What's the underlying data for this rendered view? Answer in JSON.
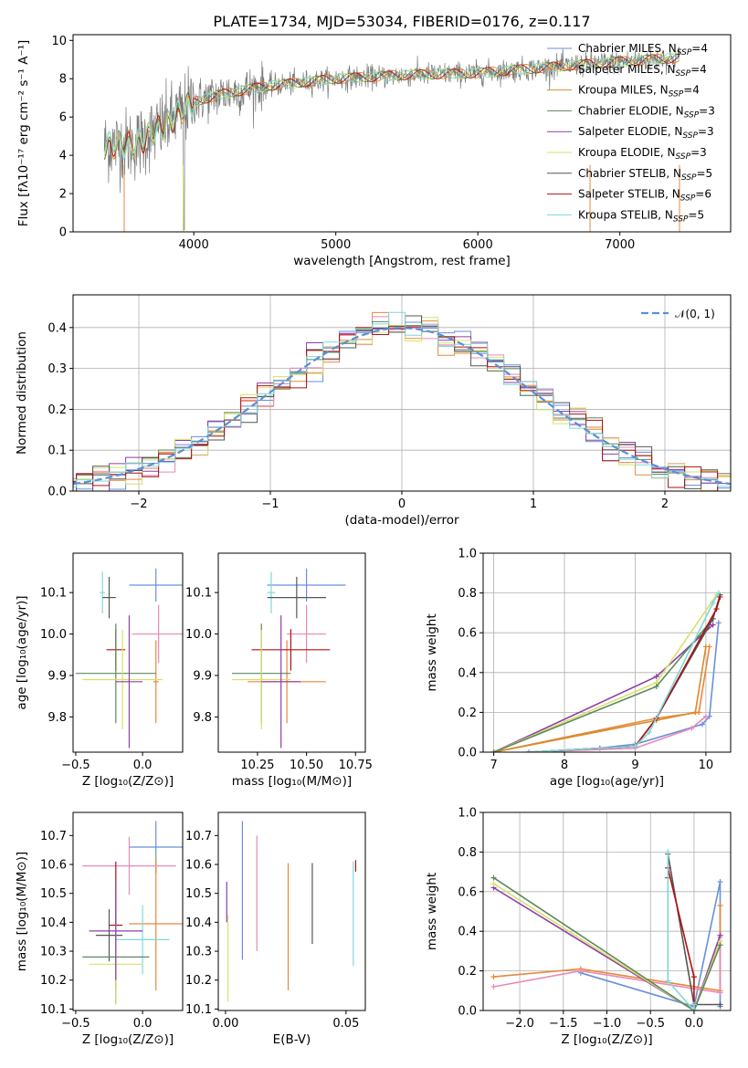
{
  "title": "PLATE=1734, MJD=53034, FIBERID=0176, z=0.117",
  "colors": {
    "chabrier_miles": "#6a8fdb",
    "salpeter_miles": "#e8883a",
    "kroupa_miles": "#d98a2a",
    "chabrier_elodie": "#5b8a5b",
    "salpeter_elodie": "#8e3ea8",
    "kroupa_elodie": "#d8e06a",
    "chabrier_stelib": "#555555",
    "salpeter_stelib": "#b01010",
    "kroupa_stelib": "#7fd8d8",
    "pink": "#e889b8",
    "gaussian": "#5b8fd6",
    "grid": "#b0b0b0",
    "spectrum": "#7a7a7a"
  },
  "chart_data": [
    {
      "id": "spectrum",
      "type": "line",
      "xlabel": "wavelength [Angstrom, rest frame]",
      "ylabel": "Flux [fλ10⁻¹⁷ erg cm⁻² s⁻¹ A⁻¹]",
      "xlim": [
        3150,
        7780
      ],
      "ylim": [
        0,
        10.3
      ],
      "xticks": [
        "4000",
        "5000",
        "6000",
        "7000"
      ],
      "yticks": [
        "0",
        "2",
        "4",
        "6",
        "8",
        "10"
      ],
      "x_range": [
        3370,
        7420
      ],
      "legend_loc": "upper-right",
      "legend": [
        "Chabrier MILES, N_SSP=4",
        "Salpeter MILES, N_SSP=4",
        "Kroupa MILES, N_SSP=4",
        "Chabrier ELODIE, N_SSP=3",
        "Salpeter ELODIE, N_SSP=3",
        "Kroupa ELODIE, N_SSP=3",
        "Chabrier STELIB, N_SSP=5",
        "Salpeter STELIB, N_SSP=6",
        "Kroupa STELIB, N_SSP=5"
      ],
      "continuum": [
        [
          3370,
          4.5
        ],
        [
          3600,
          4.6
        ],
        [
          3800,
          5.6
        ],
        [
          4000,
          6.8
        ],
        [
          4200,
          7.2
        ],
        [
          4500,
          7.6
        ],
        [
          5000,
          8.0
        ],
        [
          5500,
          8.2
        ],
        [
          6000,
          8.3
        ],
        [
          6500,
          8.6
        ],
        [
          7000,
          8.9
        ],
        [
          7420,
          9.1
        ]
      ]
    },
    {
      "id": "residuals",
      "type": "step",
      "xlabel": "(data-model)/error",
      "ylabel": "Normed distribution",
      "xlim": [
        -2.5,
        2.5
      ],
      "ylim": [
        0,
        0.48
      ],
      "xticks": [
        "−2",
        "−1",
        "0",
        "1",
        "2"
      ],
      "yticks": [
        "0.0",
        "0.1",
        "0.2",
        "0.3",
        "0.4"
      ],
      "grid": true,
      "bin_width": 0.125,
      "legend": [
        "𝒩(0, 1)"
      ],
      "legend_loc": "upper-right"
    },
    {
      "id": "age_vs_Z",
      "type": "errorbar",
      "xlabel": "Z [log₁₀(Z/Z⊙)]",
      "ylabel": "age  [log₁₀(age/yr)]",
      "xlim": [
        -0.52,
        0.3
      ],
      "ylim": [
        9.715,
        10.195
      ],
      "xticks": [
        "−0.5",
        "0.0"
      ],
      "yticks": [
        "9.8",
        "9.9",
        "10.0",
        "10.1"
      ],
      "points": [
        {
          "x": 0.1,
          "xe": 0.2,
          "y": 10.118,
          "ye": 0.04,
          "c": "chabrier_miles"
        },
        {
          "x": 0.1,
          "xe": 0.02,
          "y": 9.885,
          "ye": 0.1,
          "c": "salpeter_miles"
        },
        {
          "x": 0.12,
          "xe": 0.2,
          "y": 10.0,
          "ye": 0.07,
          "c": "pink"
        },
        {
          "x": -0.3,
          "xe": 0.02,
          "y": 10.1,
          "ye": 0.05,
          "c": "kroupa_stelib"
        },
        {
          "x": -0.25,
          "xe": 0.05,
          "y": 10.088,
          "ye": 0.05,
          "c": "chabrier_stelib"
        },
        {
          "x": -0.2,
          "xe": 0.07,
          "y": 9.962,
          "ye": 0.05,
          "c": "salpeter_stelib"
        },
        {
          "x": -0.2,
          "xe": 0.3,
          "y": 9.905,
          "ye": 0.12,
          "c": "chabrier_elodie"
        },
        {
          "x": -0.15,
          "xe": 0.3,
          "y": 9.89,
          "ye": 0.12,
          "c": "kroupa_elodie"
        },
        {
          "x": -0.1,
          "xe": 0.1,
          "y": 9.885,
          "ye": 0.16,
          "c": "salpeter_elodie"
        }
      ]
    },
    {
      "id": "age_vs_mass",
      "type": "errorbar",
      "xlabel": "mass [log₁₀(M/M⊙)]",
      "ylabel": "",
      "xlim": [
        10.05,
        10.8
      ],
      "ylim": [
        9.715,
        10.195
      ],
      "xticks": [
        "10.25",
        "10.50",
        "10.75"
      ],
      "yticks": [
        "9.8",
        "9.9",
        "10.0",
        "10.1"
      ],
      "points": [
        {
          "x": 10.5,
          "xe": 0.2,
          "y": 10.118,
          "ye": 0.04,
          "c": "chabrier_miles"
        },
        {
          "x": 10.4,
          "xe": 0.2,
          "y": 9.885,
          "ye": 0.1,
          "c": "salpeter_miles"
        },
        {
          "x": 10.5,
          "xe": 0.1,
          "y": 10.0,
          "ye": 0.07,
          "c": "pink"
        },
        {
          "x": 10.32,
          "xe": 0.02,
          "y": 10.1,
          "ye": 0.05,
          "c": "kroupa_stelib"
        },
        {
          "x": 10.45,
          "xe": 0.15,
          "y": 10.088,
          "ye": 0.05,
          "c": "chabrier_stelib"
        },
        {
          "x": 10.42,
          "xe": 0.2,
          "y": 9.962,
          "ye": 0.05,
          "c": "salpeter_stelib"
        },
        {
          "x": 10.27,
          "xe": 0.15,
          "y": 9.905,
          "ye": 0.12,
          "c": "chabrier_elodie"
        },
        {
          "x": 10.27,
          "xe": 0.15,
          "y": 9.89,
          "ye": 0.12,
          "c": "kroupa_elodie"
        },
        {
          "x": 10.37,
          "xe": 0.1,
          "y": 9.885,
          "ye": 0.16,
          "c": "salpeter_elodie"
        }
      ]
    },
    {
      "id": "weight_vs_age",
      "type": "line",
      "xlabel": "age  [log₁₀(age/yr)]",
      "ylabel": "mass weight",
      "xlim": [
        6.85,
        10.35
      ],
      "ylim": [
        0,
        1.0
      ],
      "xticks": [
        "7",
        "8",
        "9",
        "10"
      ],
      "yticks": [
        "0.0",
        "0.2",
        "0.4",
        "0.6",
        "0.8",
        "1.0"
      ],
      "grid": true,
      "series": [
        {
          "c": "chabrier_miles",
          "x": [
            7.5,
            8.5,
            9.0,
            9.95,
            10.05,
            10.18
          ],
          "y": [
            0.0,
            0.02,
            0.04,
            0.14,
            0.18,
            0.65
          ]
        },
        {
          "c": "salpeter_miles",
          "x": [
            7.0,
            9.3,
            9.9,
            10.05
          ],
          "y": [
            0.0,
            0.17,
            0.2,
            0.53
          ]
        },
        {
          "c": "kroupa_miles",
          "x": [
            7.0,
            9.3,
            9.85,
            10.0
          ],
          "y": [
            0.0,
            0.16,
            0.2,
            0.53
          ]
        },
        {
          "c": "pink",
          "x": [
            7.5,
            9.0,
            9.8,
            10.0
          ],
          "y": [
            0.0,
            0.02,
            0.12,
            0.18
          ]
        },
        {
          "c": "salpeter_elodie",
          "x": [
            7.0,
            9.3,
            10.1
          ],
          "y": [
            0.0,
            0.38,
            0.64
          ]
        },
        {
          "c": "kroupa_elodie",
          "x": [
            7.0,
            9.3,
            10.15
          ],
          "y": [
            0.0,
            0.35,
            0.79
          ]
        },
        {
          "c": "chabrier_elodie",
          "x": [
            7.0,
            9.3,
            10.1
          ],
          "y": [
            0.0,
            0.33,
            0.67
          ]
        },
        {
          "c": "chabrier_stelib",
          "x": [
            7.5,
            9.0,
            9.3,
            10.1,
            10.2
          ],
          "y": [
            0.0,
            0.03,
            0.17,
            0.67,
            0.79
          ]
        },
        {
          "c": "salpeter_stelib",
          "x": [
            7.5,
            9.0,
            9.3,
            10.15,
            10.2
          ],
          "y": [
            0.0,
            0.03,
            0.17,
            0.72,
            0.78
          ]
        },
        {
          "c": "kroupa_stelib",
          "x": [
            7.5,
            9.0,
            9.2,
            10.1,
            10.18
          ],
          "y": [
            0.0,
            0.03,
            0.1,
            0.75,
            0.8
          ]
        }
      ]
    },
    {
      "id": "mass_vs_Z",
      "type": "errorbar",
      "xlabel": "Z [log₁₀(Z/Z⊙)]",
      "ylabel": "mass [log₁₀(M/M⊙)]",
      "xlim": [
        -0.52,
        0.3
      ],
      "ylim": [
        10.095,
        10.78
      ],
      "xticks": [
        "−0.5",
        "0.0"
      ],
      "yticks": [
        "10.1",
        "10.2",
        "10.3",
        "10.4",
        "10.5",
        "10.6",
        "10.7"
      ],
      "points": [
        {
          "x": 0.1,
          "xe": 0.2,
          "y": 10.66,
          "ye": 0.09,
          "c": "chabrier_miles"
        },
        {
          "x": 0.1,
          "xe": 0.2,
          "y": 10.395,
          "ye": 0.23,
          "c": "salpeter_miles"
        },
        {
          "x": -0.1,
          "xe": 0.35,
          "y": 10.595,
          "ye": 0.1,
          "c": "pink"
        },
        {
          "x": 0.0,
          "xe": 0.2,
          "y": 10.34,
          "ye": 0.12,
          "c": "kroupa_stelib"
        },
        {
          "x": -0.25,
          "xe": 0.1,
          "y": 10.355,
          "ye": 0.09,
          "c": "chabrier_stelib"
        },
        {
          "x": -0.2,
          "xe": 0.05,
          "y": 10.39,
          "ye": 0.22,
          "c": "salpeter_stelib"
        },
        {
          "x": -0.2,
          "xe": 0.25,
          "y": 10.28,
          "ye": 0.16,
          "c": "chabrier_elodie"
        },
        {
          "x": -0.2,
          "xe": 0.2,
          "y": 10.255,
          "ye": 0.14,
          "c": "kroupa_elodie"
        },
        {
          "x": -0.2,
          "xe": 0.2,
          "y": 10.37,
          "ye": 0.17,
          "c": "salpeter_elodie"
        }
      ]
    },
    {
      "id": "mass_vs_ebv",
      "type": "errorbar",
      "xlabel": "E(B-V)",
      "ylabel": "",
      "xlim": [
        -0.003,
        0.058
      ],
      "ylim": [
        10.095,
        10.78
      ],
      "xticks": [
        "0.00",
        "0.05"
      ],
      "yticks": [
        "10.1",
        "10.2",
        "10.3",
        "10.4",
        "10.5",
        "10.6",
        "10.7"
      ],
      "points": [
        {
          "x": 0.007,
          "xe": 0.0,
          "y": 10.51,
          "ye": 0.24,
          "c": "chabrier_miles"
        },
        {
          "x": 0.026,
          "xe": 0.0,
          "y": 10.385,
          "ye": 0.22,
          "c": "salpeter_miles"
        },
        {
          "x": 0.013,
          "xe": 0.0,
          "y": 10.5,
          "ye": 0.2,
          "c": "pink"
        },
        {
          "x": 0.036,
          "xe": 0.0,
          "y": 10.465,
          "ye": 0.14,
          "c": "chabrier_stelib"
        },
        {
          "x": 0.053,
          "xe": 0.0,
          "y": 10.43,
          "ye": 0.18,
          "c": "kroupa_stelib"
        },
        {
          "x": 0.054,
          "xe": 0.0,
          "y": 10.595,
          "ye": 0.02,
          "c": "salpeter_stelib"
        },
        {
          "x": 0.001,
          "xe": 0.0,
          "y": 10.275,
          "ye": 0.15,
          "c": "kroupa_elodie"
        },
        {
          "x": 0.0005,
          "xe": 0.0,
          "y": 10.47,
          "ye": 0.07,
          "c": "salpeter_elodie"
        }
      ]
    },
    {
      "id": "weight_vs_Z",
      "type": "line",
      "xlabel": "Z [log₁₀(Z/Z⊙)]",
      "ylabel": "mass weight",
      "xlim": [
        -2.42,
        0.42
      ],
      "ylim": [
        0,
        1.0
      ],
      "xticks": [
        "−2.0",
        "−1.5",
        "−1.0",
        "−0.5",
        "0.0"
      ],
      "yticks": [
        "0.0",
        "0.2",
        "0.4",
        "0.6",
        "0.8",
        "1.0"
      ],
      "grid": true,
      "series": [
        {
          "c": "chabrier_miles",
          "x": [
            -1.3,
            0.0,
            0.3,
            0.3
          ],
          "y": [
            0.19,
            0.02,
            0.65,
            0.02
          ]
        },
        {
          "c": "salpeter_miles",
          "x": [
            -2.3,
            -1.3,
            0.3,
            0.3
          ],
          "y": [
            0.17,
            0.21,
            0.1,
            0.53
          ]
        },
        {
          "c": "pink",
          "x": [
            -2.3,
            -1.3,
            0.3,
            0.3
          ],
          "y": [
            0.12,
            0.2,
            0.09,
            0.37
          ]
        },
        {
          "c": "salpeter_elodie",
          "x": [
            -2.3,
            0.0,
            0.3
          ],
          "y": [
            0.62,
            0.0,
            0.38
          ]
        },
        {
          "c": "kroupa_elodie",
          "x": [
            -2.3,
            0.0,
            0.3
          ],
          "y": [
            0.64,
            0.0,
            0.35
          ]
        },
        {
          "c": "chabrier_elodie",
          "x": [
            -2.3,
            0.0,
            0.3
          ],
          "y": [
            0.67,
            0.0,
            0.33
          ]
        },
        {
          "c": "chabrier_stelib",
          "x": [
            -0.3,
            -0.3,
            0.0,
            0.3
          ],
          "y": [
            0.67,
            0.79,
            0.03,
            0.03
          ]
        },
        {
          "c": "salpeter_stelib",
          "x": [
            -0.3,
            0.0,
            0.0
          ],
          "y": [
            0.72,
            0.17,
            0.03
          ]
        },
        {
          "c": "kroupa_stelib",
          "x": [
            -0.3,
            -0.3,
            0.0,
            0.0
          ],
          "y": [
            0.8,
            0.15,
            0.0,
            0.03
          ]
        }
      ]
    }
  ]
}
